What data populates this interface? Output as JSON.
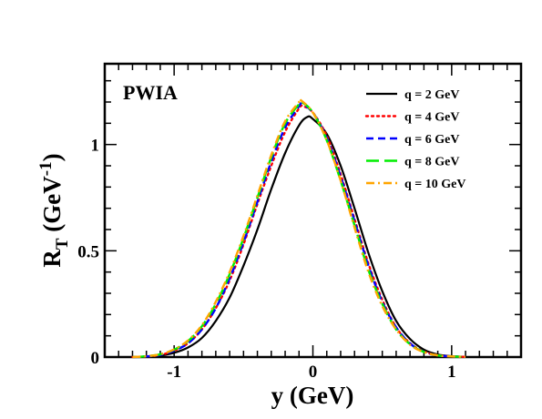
{
  "chart_data": {
    "type": "line",
    "title": "",
    "xlabel": "y (GeV)",
    "ylabel_main": "R",
    "ylabel_sub": "T",
    "ylabel_unit": " (GeV",
    "ylabel_exp": "-1",
    "ylabel_close": ")",
    "annotation": "PWIA",
    "xlim": [
      -1.5,
      1.5
    ],
    "ylim": [
      0,
      1.38
    ],
    "xticks": [
      -1,
      0,
      1
    ],
    "xtick_labels": [
      "-1",
      "0",
      "1"
    ],
    "yticks": [
      0,
      0.5,
      1
    ],
    "ytick_labels": [
      "0",
      "0.5",
      "1"
    ],
    "grid": false,
    "legend_position": "top-right",
    "series": [
      {
        "name": "q = 2 GeV",
        "color": "#000000",
        "dash": "solid",
        "peak_x": -0.04,
        "x": [
          -1.3,
          -1.2,
          -1.1,
          -1.0,
          -0.9,
          -0.8,
          -0.7,
          -0.6,
          -0.5,
          -0.4,
          -0.3,
          -0.2,
          -0.1,
          -0.04,
          0.0,
          0.1,
          0.2,
          0.3,
          0.4,
          0.5,
          0.6,
          0.7,
          0.8,
          0.9,
          1.0,
          1.1
        ],
        "y": [
          0.0,
          0.002,
          0.007,
          0.02,
          0.045,
          0.09,
          0.17,
          0.28,
          0.43,
          0.6,
          0.79,
          0.96,
          1.09,
          1.13,
          1.12,
          1.05,
          0.9,
          0.7,
          0.49,
          0.31,
          0.17,
          0.085,
          0.035,
          0.012,
          0.004,
          0.001
        ]
      },
      {
        "name": "q = 4 GeV",
        "color": "#ff0000",
        "dash": "dotted",
        "peak_x": -0.07,
        "x": [
          -1.3,
          -1.2,
          -1.1,
          -1.0,
          -0.9,
          -0.8,
          -0.7,
          -0.6,
          -0.5,
          -0.4,
          -0.3,
          -0.2,
          -0.1,
          -0.07,
          0.0,
          0.1,
          0.2,
          0.3,
          0.4,
          0.5,
          0.6,
          0.7,
          0.8,
          0.9,
          1.0,
          1.1
        ],
        "y": [
          0.0,
          0.003,
          0.01,
          0.03,
          0.065,
          0.13,
          0.23,
          0.36,
          0.53,
          0.72,
          0.9,
          1.06,
          1.17,
          1.18,
          1.15,
          1.04,
          0.86,
          0.65,
          0.44,
          0.27,
          0.14,
          0.065,
          0.026,
          0.009,
          0.003,
          0.001
        ]
      },
      {
        "name": "q = 6 GeV",
        "color": "#0000ff",
        "dash": "dashed",
        "peak_x": -0.08,
        "x": [
          -1.3,
          -1.2,
          -1.1,
          -1.0,
          -0.9,
          -0.8,
          -0.7,
          -0.6,
          -0.5,
          -0.4,
          -0.3,
          -0.2,
          -0.1,
          -0.08,
          0.0,
          0.1,
          0.2,
          0.3,
          0.4,
          0.5,
          0.6,
          0.7,
          0.8,
          0.9,
          1.0,
          1.1
        ],
        "y": [
          0.0,
          0.003,
          0.01,
          0.03,
          0.065,
          0.13,
          0.23,
          0.37,
          0.54,
          0.73,
          0.92,
          1.08,
          1.18,
          1.19,
          1.15,
          1.03,
          0.85,
          0.64,
          0.43,
          0.26,
          0.14,
          0.064,
          0.025,
          0.008,
          0.003,
          0.001
        ]
      },
      {
        "name": "q = 8 GeV",
        "color": "#00ee00",
        "dash": "longdash",
        "peak_x": -0.08,
        "x": [
          -1.3,
          -1.2,
          -1.1,
          -1.0,
          -0.9,
          -0.8,
          -0.7,
          -0.6,
          -0.5,
          -0.4,
          -0.3,
          -0.2,
          -0.1,
          -0.08,
          0.0,
          0.1,
          0.2,
          0.3,
          0.4,
          0.5,
          0.6,
          0.7,
          0.8,
          0.9,
          1.0,
          1.1
        ],
        "y": [
          0.0,
          0.004,
          0.013,
          0.035,
          0.075,
          0.145,
          0.25,
          0.39,
          0.56,
          0.75,
          0.94,
          1.1,
          1.19,
          1.2,
          1.15,
          1.02,
          0.83,
          0.62,
          0.41,
          0.25,
          0.13,
          0.06,
          0.024,
          0.008,
          0.003,
          0.001
        ]
      },
      {
        "name": "q = 10 GeV",
        "color": "#ffa500",
        "dash": "dashdot",
        "peak_x": -0.09,
        "x": [
          -1.3,
          -1.2,
          -1.1,
          -1.0,
          -0.9,
          -0.8,
          -0.7,
          -0.6,
          -0.5,
          -0.4,
          -0.3,
          -0.2,
          -0.1,
          -0.09,
          0.0,
          0.1,
          0.2,
          0.3,
          0.4,
          0.5,
          0.6,
          0.7,
          0.8,
          0.9,
          1.0,
          1.1
        ],
        "y": [
          0.0,
          0.004,
          0.013,
          0.036,
          0.078,
          0.15,
          0.26,
          0.4,
          0.57,
          0.76,
          0.95,
          1.11,
          1.2,
          1.21,
          1.15,
          1.02,
          0.83,
          0.61,
          0.4,
          0.24,
          0.13,
          0.058,
          0.023,
          0.008,
          0.003,
          0.001
        ]
      }
    ]
  }
}
